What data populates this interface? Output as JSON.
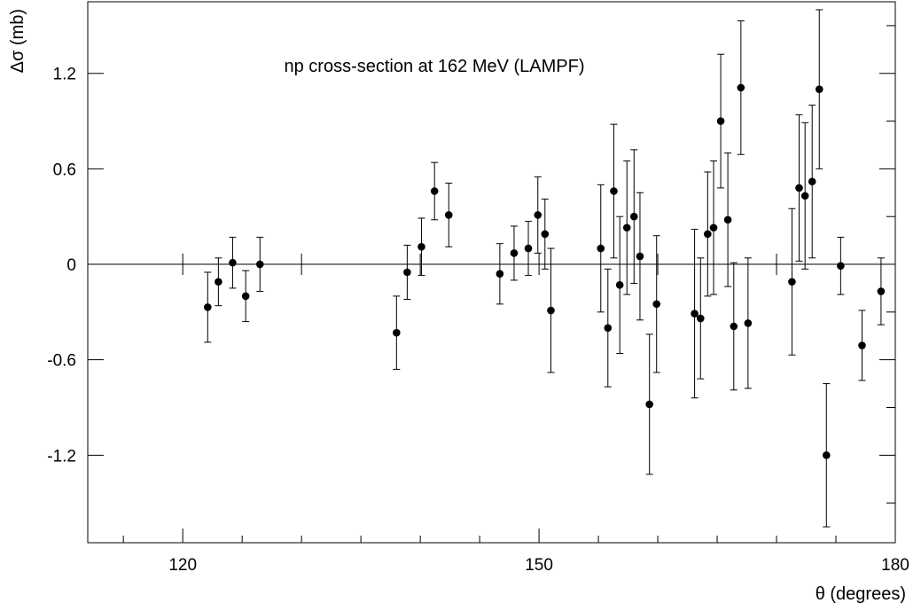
{
  "chart_data": {
    "type": "scatter",
    "title": "np cross-section at 162 MeV (LAMPF)",
    "xlabel": "θ (degrees)",
    "ylabel": "Δσ (mb)",
    "xlim": [
      112,
      180
    ],
    "ylim": [
      -1.75,
      1.65
    ],
    "x_ticks": [
      120,
      150,
      180
    ],
    "x_tick_labels": [
      "120",
      "150",
      "180"
    ],
    "y_ticks": [
      -1.2,
      -0.6,
      0,
      0.6,
      1.2
    ],
    "y_tick_labels": [
      "-1.2",
      "-0.6",
      "0",
      "0.6",
      "1.2"
    ],
    "reference_line": 0,
    "grid": false,
    "legend": "none",
    "series": [
      {
        "points": [
          {
            "x": 122.1,
            "y": -0.27,
            "err": 0.22
          },
          {
            "x": 123.0,
            "y": -0.11,
            "err": 0.15
          },
          {
            "x": 124.2,
            "y": 0.01,
            "err": 0.16
          },
          {
            "x": 125.3,
            "y": -0.2,
            "err": 0.16
          },
          {
            "x": 126.5,
            "y": 0.0,
            "err": 0.17
          },
          {
            "x": 138.0,
            "y": -0.43,
            "err": 0.23
          },
          {
            "x": 138.9,
            "y": -0.05,
            "err": 0.17
          },
          {
            "x": 140.1,
            "y": 0.11,
            "err": 0.18
          },
          {
            "x": 141.2,
            "y": 0.46,
            "err": 0.18
          },
          {
            "x": 142.4,
            "y": 0.31,
            "err": 0.2
          },
          {
            "x": 146.7,
            "y": -0.06,
            "err": 0.19
          },
          {
            "x": 147.9,
            "y": 0.07,
            "err": 0.17
          },
          {
            "x": 149.1,
            "y": 0.1,
            "err": 0.17
          },
          {
            "x": 149.9,
            "y": 0.31,
            "err": 0.24
          },
          {
            "x": 150.5,
            "y": 0.19,
            "err": 0.22
          },
          {
            "x": 151.0,
            "y": -0.29,
            "err": 0.39
          },
          {
            "x": 155.2,
            "y": 0.1,
            "err": 0.4
          },
          {
            "x": 155.8,
            "y": -0.4,
            "err": 0.37
          },
          {
            "x": 156.3,
            "y": 0.46,
            "err": 0.42
          },
          {
            "x": 156.8,
            "y": -0.13,
            "err": 0.43
          },
          {
            "x": 157.4,
            "y": 0.23,
            "err": 0.42
          },
          {
            "x": 158.0,
            "y": 0.3,
            "err": 0.42
          },
          {
            "x": 158.5,
            "y": 0.05,
            "err": 0.4
          },
          {
            "x": 159.3,
            "y": -0.88,
            "err": 0.44
          },
          {
            "x": 159.9,
            "y": -0.25,
            "err": 0.43
          },
          {
            "x": 163.1,
            "y": -0.31,
            "err": 0.53
          },
          {
            "x": 163.6,
            "y": -0.34,
            "err": 0.38
          },
          {
            "x": 164.2,
            "y": 0.19,
            "err": 0.39
          },
          {
            "x": 164.7,
            "y": 0.23,
            "err": 0.42
          },
          {
            "x": 165.3,
            "y": 0.9,
            "err": 0.42
          },
          {
            "x": 165.9,
            "y": 0.28,
            "err": 0.42
          },
          {
            "x": 166.4,
            "y": -0.39,
            "err": 0.4
          },
          {
            "x": 167.0,
            "y": 1.11,
            "err": 0.42
          },
          {
            "x": 167.6,
            "y": -0.37,
            "err": 0.41
          },
          {
            "x": 171.3,
            "y": -0.11,
            "err": 0.46
          },
          {
            "x": 171.9,
            "y": 0.48,
            "err": 0.46
          },
          {
            "x": 172.4,
            "y": 0.43,
            "err": 0.46
          },
          {
            "x": 173.0,
            "y": 0.52,
            "err": 0.48
          },
          {
            "x": 173.6,
            "y": 1.1,
            "err": 0.5
          },
          {
            "x": 174.2,
            "y": -1.2,
            "err": 0.45
          },
          {
            "x": 175.4,
            "y": -0.01,
            "err": 0.18
          },
          {
            "x": 177.2,
            "y": -0.51,
            "err": 0.22
          },
          {
            "x": 178.8,
            "y": -0.17,
            "err": 0.21
          }
        ]
      }
    ]
  }
}
